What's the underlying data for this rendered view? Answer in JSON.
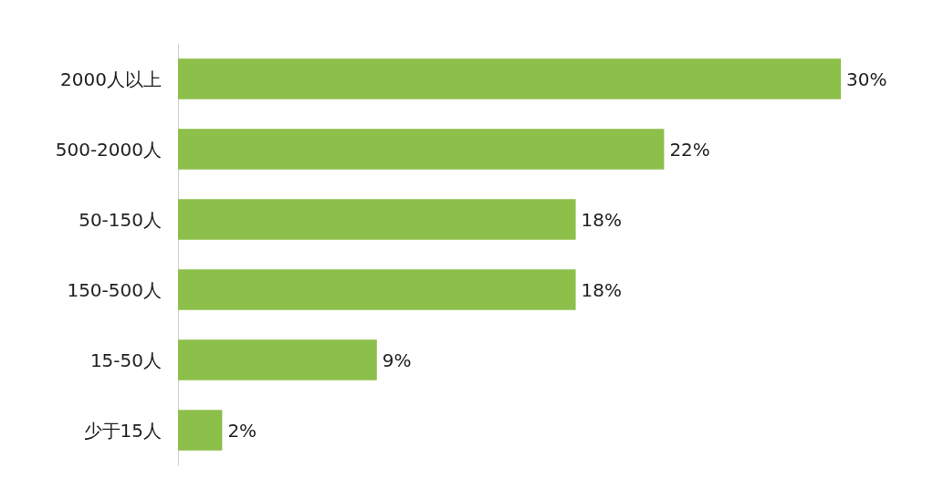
{
  "chart_data": {
    "type": "bar",
    "orientation": "horizontal",
    "categories": [
      "2000人以上",
      "500-2000人",
      "50-150人",
      "150-500人",
      "15-50人",
      "少于15人"
    ],
    "values": [
      30,
      22,
      18,
      18,
      9,
      2
    ],
    "value_labels": [
      "30%",
      "22%",
      "18%",
      "18%",
      "9%",
      "2%"
    ],
    "color": "#8dbf4b"
  }
}
